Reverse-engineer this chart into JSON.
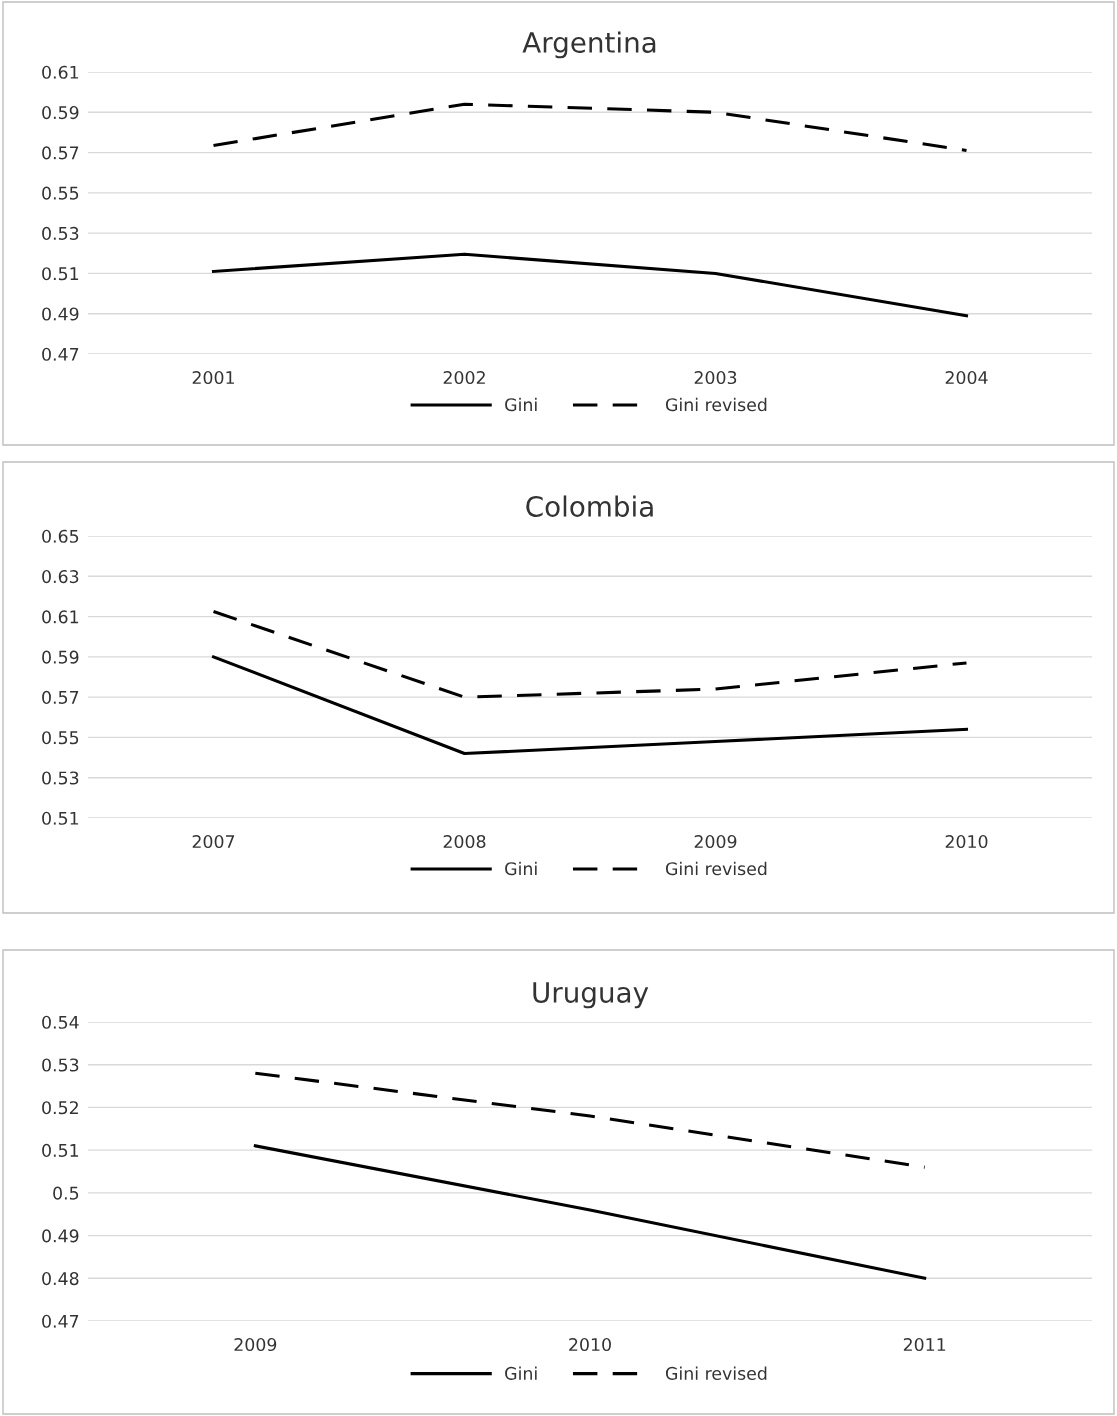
{
  "chart_data": [
    {
      "type": "line",
      "title": "Argentina",
      "categories": [
        "2001",
        "2002",
        "2003",
        "2004"
      ],
      "ylim": [
        0.47,
        0.61
      ],
      "yticks": [
        0.47,
        0.49,
        0.51,
        0.53,
        0.55,
        0.57,
        0.59,
        0.61
      ],
      "grid": "y",
      "legend": "bottom",
      "marker": "none",
      "series": [
        {
          "name": "Gini",
          "color": "#000000",
          "line_style": "solid",
          "values": [
            0.511,
            0.5195,
            0.51,
            0.489
          ]
        },
        {
          "name": "Gini revised",
          "color": "#000000",
          "line_style": "dashed",
          "values": [
            0.5735,
            0.594,
            0.59,
            0.571
          ]
        }
      ]
    },
    {
      "type": "line",
      "title": "Colombia",
      "categories": [
        "2007",
        "2008",
        "2009",
        "2010"
      ],
      "ylim": [
        0.51,
        0.65
      ],
      "yticks": [
        0.51,
        0.53,
        0.55,
        0.57,
        0.59,
        0.61,
        0.63,
        0.65
      ],
      "grid": "y",
      "legend": "bottom",
      "marker": "none",
      "series": [
        {
          "name": "Gini",
          "color": "#000000",
          "line_style": "solid",
          "values": [
            0.59,
            0.542,
            0.548,
            0.554
          ]
        },
        {
          "name": "Gini revised",
          "color": "#000000",
          "line_style": "dashed",
          "values": [
            0.6125,
            0.57,
            0.574,
            0.587
          ]
        }
      ]
    },
    {
      "type": "line",
      "title": "Uruguay",
      "categories": [
        "2009",
        "2010",
        "2011"
      ],
      "ylim": [
        0.47,
        0.54
      ],
      "yticks": [
        0.47,
        0.48,
        0.49,
        0.5,
        0.51,
        0.52,
        0.53,
        0.54
      ],
      "grid": "y",
      "legend": "bottom",
      "marker": "none",
      "series": [
        {
          "name": "Gini",
          "color": "#000000",
          "line_style": "solid",
          "values": [
            0.511,
            0.496,
            0.48
          ]
        },
        {
          "name": "Gini revised",
          "color": "#000000",
          "line_style": "dashed",
          "values": [
            0.528,
            0.518,
            0.506
          ]
        }
      ]
    }
  ]
}
